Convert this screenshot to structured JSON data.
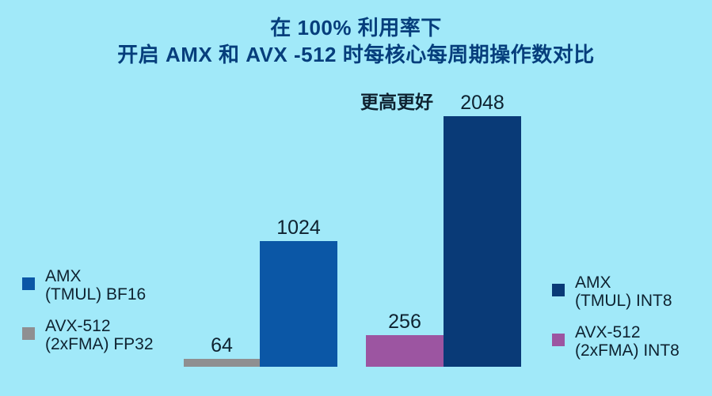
{
  "page": {
    "background": "#A1E9F9",
    "text_color": "#0E2230"
  },
  "title": {
    "line1": "在 100% 利用率下",
    "line2": "开启 AMX 和 AVX -512 时每核心每周期操作数对比",
    "color": "#063E7C"
  },
  "annotation": {
    "text": "更高更好"
  },
  "chart_data": {
    "type": "bar",
    "title": "在 100% 利用率下 开启 AMX 和 AVX -512 时每核心每周期操作数对比",
    "subtitle": "更高更好",
    "ylim": [
      0,
      2048
    ],
    "grid": false,
    "axes_visible": false,
    "legend_position": "left-and-right-of-groups",
    "groups": [
      {
        "bars": [
          {
            "series": "AVX-512 (2xFMA) FP32",
            "value": 64,
            "color": "#8F8F91"
          },
          {
            "series": "AMX (TMUL) BF16",
            "value": 1024,
            "color": "#0B57A6"
          }
        ]
      },
      {
        "bars": [
          {
            "series": "AVX-512 (2xFMA) INT8",
            "value": 256,
            "color": "#9C55A1"
          },
          {
            "series": "AMX (TMUL) INT8",
            "value": 2048,
            "color": "#093A77"
          }
        ]
      }
    ]
  },
  "legend_left": {
    "items": [
      {
        "line1": "AMX",
        "line2": "(TMUL) BF16",
        "color": "#0B57A6"
      },
      {
        "line1": "AVX-512",
        "line2": "(2xFMA) FP32",
        "color": "#8F8F91"
      }
    ]
  },
  "legend_right": {
    "items": [
      {
        "line1": "AMX",
        "line2": "(TMUL) INT8",
        "color": "#093A77"
      },
      {
        "line1": "AVX-512",
        "line2": "(2xFMA) INT8",
        "color": "#9C55A1"
      }
    ]
  }
}
